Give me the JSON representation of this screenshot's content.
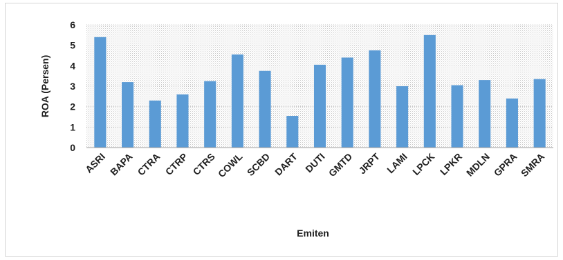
{
  "chart_data": {
    "type": "bar",
    "title": "",
    "xlabel": "Emiten",
    "ylabel": "ROA (Persen)",
    "ylim": [
      0,
      6
    ],
    "yticks": [
      0,
      1,
      2,
      3,
      4,
      5,
      6
    ],
    "grid": true,
    "legend": "none",
    "categories": [
      "ASRI",
      "BAPA",
      "CTRA",
      "CTRP",
      "CTRS",
      "COWL",
      "SCBD",
      "DART",
      "DUTI",
      "GMTD",
      "JRPT",
      "LAMI",
      "LPCK",
      "LPKR",
      "MDLN",
      "GPRA",
      "SMRA"
    ],
    "values": [
      5.4,
      3.2,
      2.3,
      2.6,
      3.25,
      4.55,
      3.75,
      1.55,
      4.05,
      4.4,
      4.75,
      3.0,
      5.5,
      3.05,
      3.3,
      2.4,
      3.35
    ],
    "bar_color": "#5b9bd5"
  }
}
